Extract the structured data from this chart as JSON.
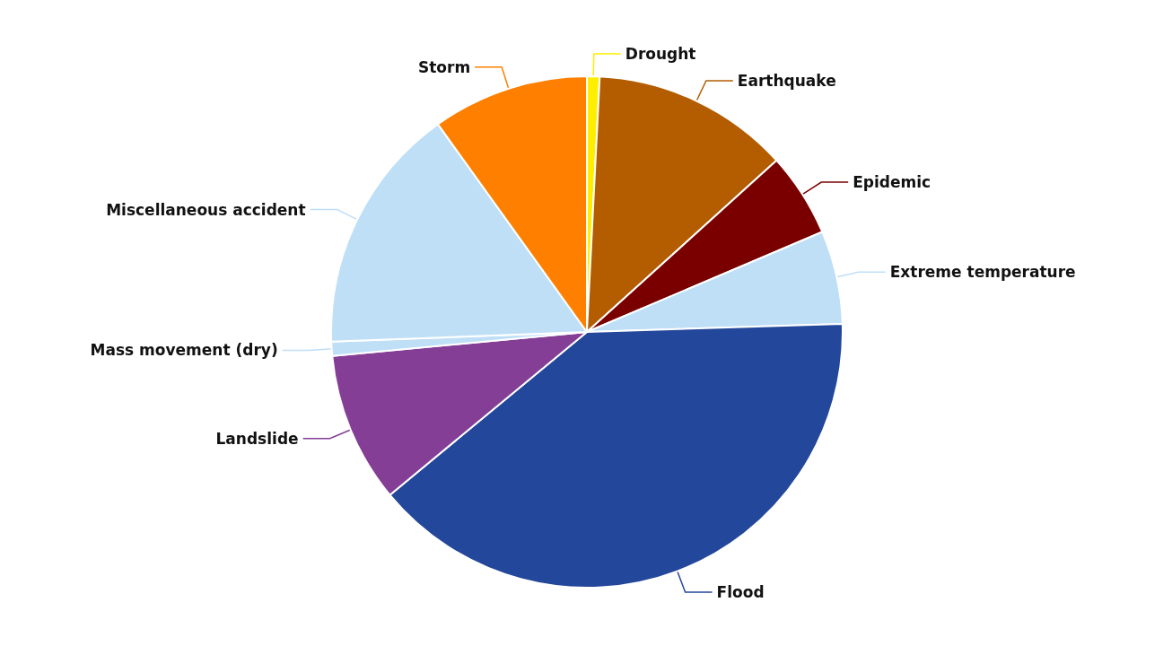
{
  "chart_data": {
    "type": "pie",
    "categories": [
      "Drought",
      "Earthquake",
      "Epidemic",
      "Extreme temperature",
      "Flood",
      "Landslide",
      "Mass movement (dry)",
      "Miscellaneous accident",
      "Storm"
    ],
    "values": [
      0.8,
      12.5,
      5.3,
      5.9,
      39.5,
      9.5,
      0.9,
      15.7,
      9.9
    ],
    "colors": [
      "#ffee00",
      "#b35c00",
      "#7a0000",
      "#bfdff7",
      "#23479a",
      "#843e96",
      "#bfdff7",
      "#bfdff7",
      "#ff8000"
    ],
    "legend": false
  }
}
